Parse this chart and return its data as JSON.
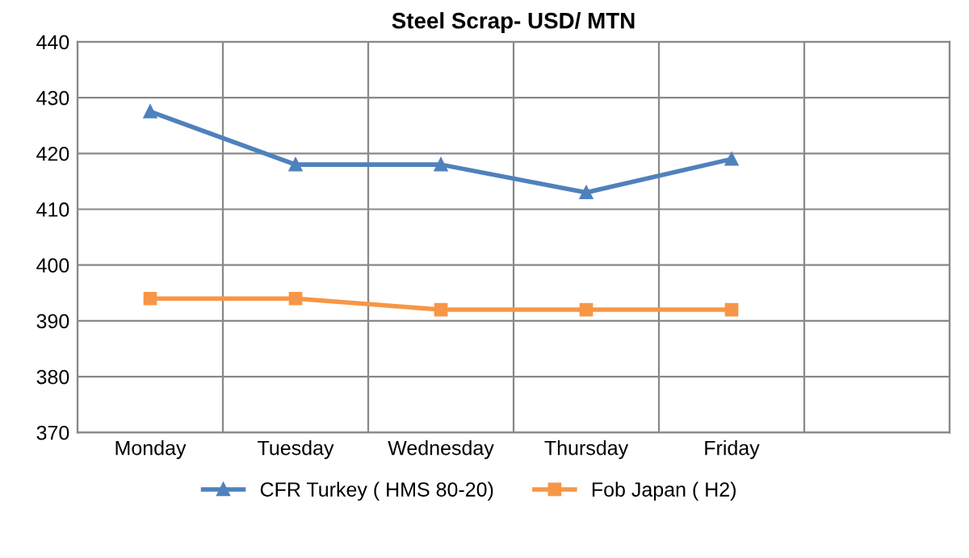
{
  "chart_data": {
    "type": "line",
    "title": "Steel Scrap- USD/ MTN",
    "categories": [
      "Monday",
      "Tuesday",
      "Wednesday",
      "Thursday",
      "Friday",
      null
    ],
    "series": [
      {
        "name": "CFR Turkey ( HMS 80-20)",
        "color": "#4f81bd",
        "marker": "triangle",
        "values": [
          427.5,
          418,
          418,
          413,
          419,
          null
        ]
      },
      {
        "name": "Fob Japan ( H2)",
        "color": "#f79646",
        "marker": "square",
        "values": [
          394,
          394,
          392,
          392,
          392,
          null
        ]
      }
    ],
    "ylim": [
      370,
      440
    ],
    "yticks": [
      370,
      380,
      390,
      400,
      410,
      420,
      430,
      440
    ],
    "grid": true,
    "legend": "bottom"
  }
}
